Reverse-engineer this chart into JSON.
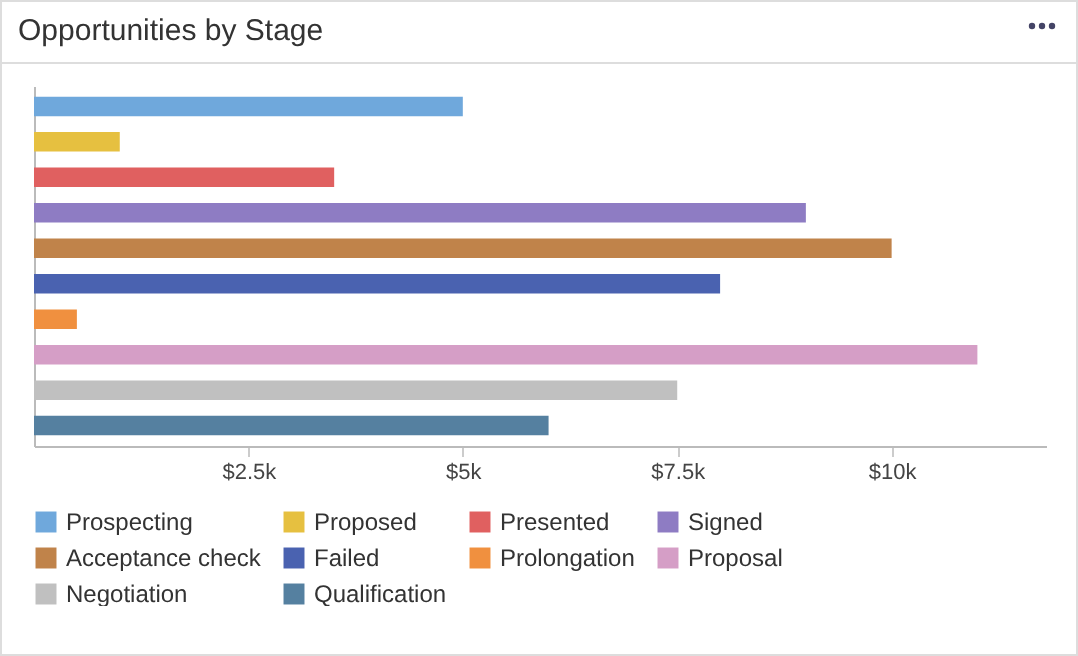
{
  "chart_data": {
    "type": "bar",
    "orientation": "horizontal",
    "title": "Opportunities by Stage",
    "categories": [
      null,
      null,
      null,
      null,
      null,
      null,
      null,
      null,
      null,
      null
    ],
    "series": [
      {
        "name": "Prospecting",
        "color": "#6fa8dc",
        "values": [
          5000,
          null,
          null,
          null,
          null,
          null,
          null,
          null,
          null,
          null
        ]
      },
      {
        "name": "Proposed",
        "color": "#e6c040",
        "values": [
          null,
          1000,
          null,
          null,
          null,
          null,
          null,
          null,
          null,
          null
        ]
      },
      {
        "name": "Presented",
        "color": "#e06060",
        "values": [
          null,
          null,
          3500,
          null,
          null,
          null,
          null,
          null,
          null,
          null
        ]
      },
      {
        "name": "Signed",
        "color": "#8e7cc3",
        "values": [
          null,
          null,
          null,
          9000,
          null,
          null,
          null,
          null,
          null,
          null
        ]
      },
      {
        "name": "Acceptance check",
        "color": "#c0834a",
        "values": [
          null,
          null,
          null,
          null,
          10000,
          null,
          null,
          null,
          null,
          null
        ]
      },
      {
        "name": "Failed",
        "color": "#4a62b0",
        "values": [
          null,
          null,
          null,
          null,
          null,
          8000,
          null,
          null,
          null,
          null
        ]
      },
      {
        "name": "Prolongation",
        "color": "#f0903f",
        "values": [
          null,
          null,
          null,
          null,
          null,
          null,
          500,
          null,
          null,
          null
        ]
      },
      {
        "name": "Proposal",
        "color": "#d59ec6",
        "values": [
          null,
          null,
          null,
          null,
          null,
          null,
          null,
          11000,
          null,
          null
        ]
      },
      {
        "name": "Negotiation",
        "color": "#c0c0c0",
        "values": [
          null,
          null,
          null,
          null,
          null,
          null,
          null,
          null,
          7500,
          null
        ]
      },
      {
        "name": "Qualification",
        "color": "#5580a0",
        "values": [
          null,
          null,
          null,
          null,
          null,
          null,
          null,
          null,
          null,
          6000
        ]
      }
    ],
    "xlim": [
      0,
      11800
    ],
    "xticks": [
      {
        "value": 2500,
        "label": "$2.5k"
      },
      {
        "value": 5000,
        "label": "$5k"
      },
      {
        "value": 7500,
        "label": "$7.5k"
      },
      {
        "value": 10000,
        "label": "$10k"
      }
    ],
    "tick_labels": "x",
    "legend": "bottom",
    "grid": false
  }
}
